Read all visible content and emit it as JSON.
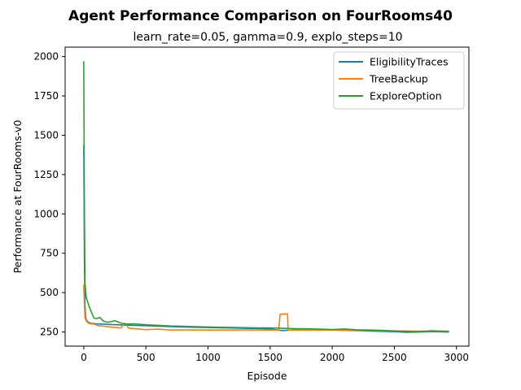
{
  "chart_data": {
    "type": "line",
    "title": "Agent Performance Comparison on FourRooms40",
    "subtitle": "learn_rate=0.05, gamma=0.9, explo_steps=10",
    "xlabel": "Episode",
    "ylabel": "Performance at FourRooms-v0",
    "xlim": [
      -150,
      3100
    ],
    "ylim": [
      160,
      2060
    ],
    "xticks": [
      0,
      500,
      1000,
      1500,
      2000,
      2500,
      3000
    ],
    "yticks": [
      250,
      500,
      750,
      1000,
      1250,
      1500,
      1750,
      2000
    ],
    "grid": false,
    "legend_position": "top-right",
    "series": [
      {
        "name": "EligibilityTraces",
        "color": "#1f77b4",
        "points": [
          [
            0,
            1440
          ],
          [
            5,
            700
          ],
          [
            10,
            420
          ],
          [
            15,
            340
          ],
          [
            25,
            320
          ],
          [
            40,
            310
          ],
          [
            60,
            305
          ],
          [
            100,
            302
          ],
          [
            150,
            300
          ],
          [
            200,
            298
          ],
          [
            300,
            295
          ],
          [
            400,
            292
          ],
          [
            500,
            290
          ],
          [
            600,
            287
          ],
          [
            700,
            284
          ],
          [
            800,
            282
          ],
          [
            900,
            280
          ],
          [
            1000,
            278
          ],
          [
            1100,
            276
          ],
          [
            1200,
            275
          ],
          [
            1300,
            273
          ],
          [
            1400,
            272
          ],
          [
            1500,
            270
          ],
          [
            1600,
            258
          ],
          [
            1700,
            265
          ],
          [
            1800,
            266
          ],
          [
            1900,
            264
          ],
          [
            2000,
            262
          ],
          [
            2100,
            260
          ],
          [
            2200,
            258
          ],
          [
            2300,
            256
          ],
          [
            2400,
            254
          ],
          [
            2500,
            252
          ],
          [
            2600,
            248
          ],
          [
            2700,
            250
          ],
          [
            2800,
            252
          ],
          [
            2940,
            250
          ]
        ]
      },
      {
        "name": "TreeBackup",
        "color": "#ff7f0e",
        "points": [
          [
            0,
            550
          ],
          [
            5,
            420
          ],
          [
            10,
            340
          ],
          [
            20,
            320
          ],
          [
            40,
            305
          ],
          [
            80,
            300
          ],
          [
            120,
            290
          ],
          [
            180,
            285
          ],
          [
            240,
            280
          ],
          [
            300,
            275
          ],
          [
            320,
            300
          ],
          [
            340,
            302
          ],
          [
            360,
            275
          ],
          [
            420,
            270
          ],
          [
            500,
            265
          ],
          [
            600,
            268
          ],
          [
            700,
            262
          ],
          [
            800,
            263
          ],
          [
            900,
            262
          ],
          [
            1000,
            262
          ],
          [
            1100,
            262
          ],
          [
            1200,
            262
          ],
          [
            1300,
            263
          ],
          [
            1400,
            262
          ],
          [
            1500,
            262
          ],
          [
            1570,
            262
          ],
          [
            1580,
            362
          ],
          [
            1620,
            365
          ],
          [
            1640,
            365
          ],
          [
            1645,
            262
          ],
          [
            1700,
            262
          ],
          [
            1800,
            262
          ],
          [
            1900,
            262
          ],
          [
            2000,
            262
          ],
          [
            2100,
            262
          ],
          [
            2200,
            260
          ],
          [
            2300,
            260
          ],
          [
            2400,
            258
          ],
          [
            2500,
            257
          ],
          [
            2600,
            256
          ],
          [
            2700,
            255
          ],
          [
            2800,
            255
          ],
          [
            2940,
            255
          ]
        ]
      },
      {
        "name": "ExploreOption",
        "color": "#2ca02c",
        "points": [
          [
            0,
            1970
          ],
          [
            5,
            1000
          ],
          [
            10,
            560
          ],
          [
            20,
            470
          ],
          [
            40,
            420
          ],
          [
            60,
            380
          ],
          [
            80,
            340
          ],
          [
            100,
            335
          ],
          [
            130,
            342
          ],
          [
            160,
            318
          ],
          [
            200,
            312
          ],
          [
            250,
            322
          ],
          [
            300,
            306
          ],
          [
            350,
            300
          ],
          [
            400,
            302
          ],
          [
            450,
            299
          ],
          [
            500,
            296
          ],
          [
            600,
            292
          ],
          [
            700,
            288
          ],
          [
            800,
            286
          ],
          [
            900,
            284
          ],
          [
            1000,
            282
          ],
          [
            1100,
            280
          ],
          [
            1200,
            279
          ],
          [
            1300,
            277
          ],
          [
            1400,
            276
          ],
          [
            1500,
            276
          ],
          [
            1600,
            273
          ],
          [
            1700,
            271
          ],
          [
            1800,
            270
          ],
          [
            1900,
            268
          ],
          [
            2000,
            266
          ],
          [
            2100,
            269
          ],
          [
            2200,
            264
          ],
          [
            2300,
            262
          ],
          [
            2400,
            260
          ],
          [
            2500,
            256
          ],
          [
            2600,
            254
          ],
          [
            2700,
            252
          ],
          [
            2800,
            258
          ],
          [
            2940,
            253
          ]
        ]
      }
    ]
  }
}
